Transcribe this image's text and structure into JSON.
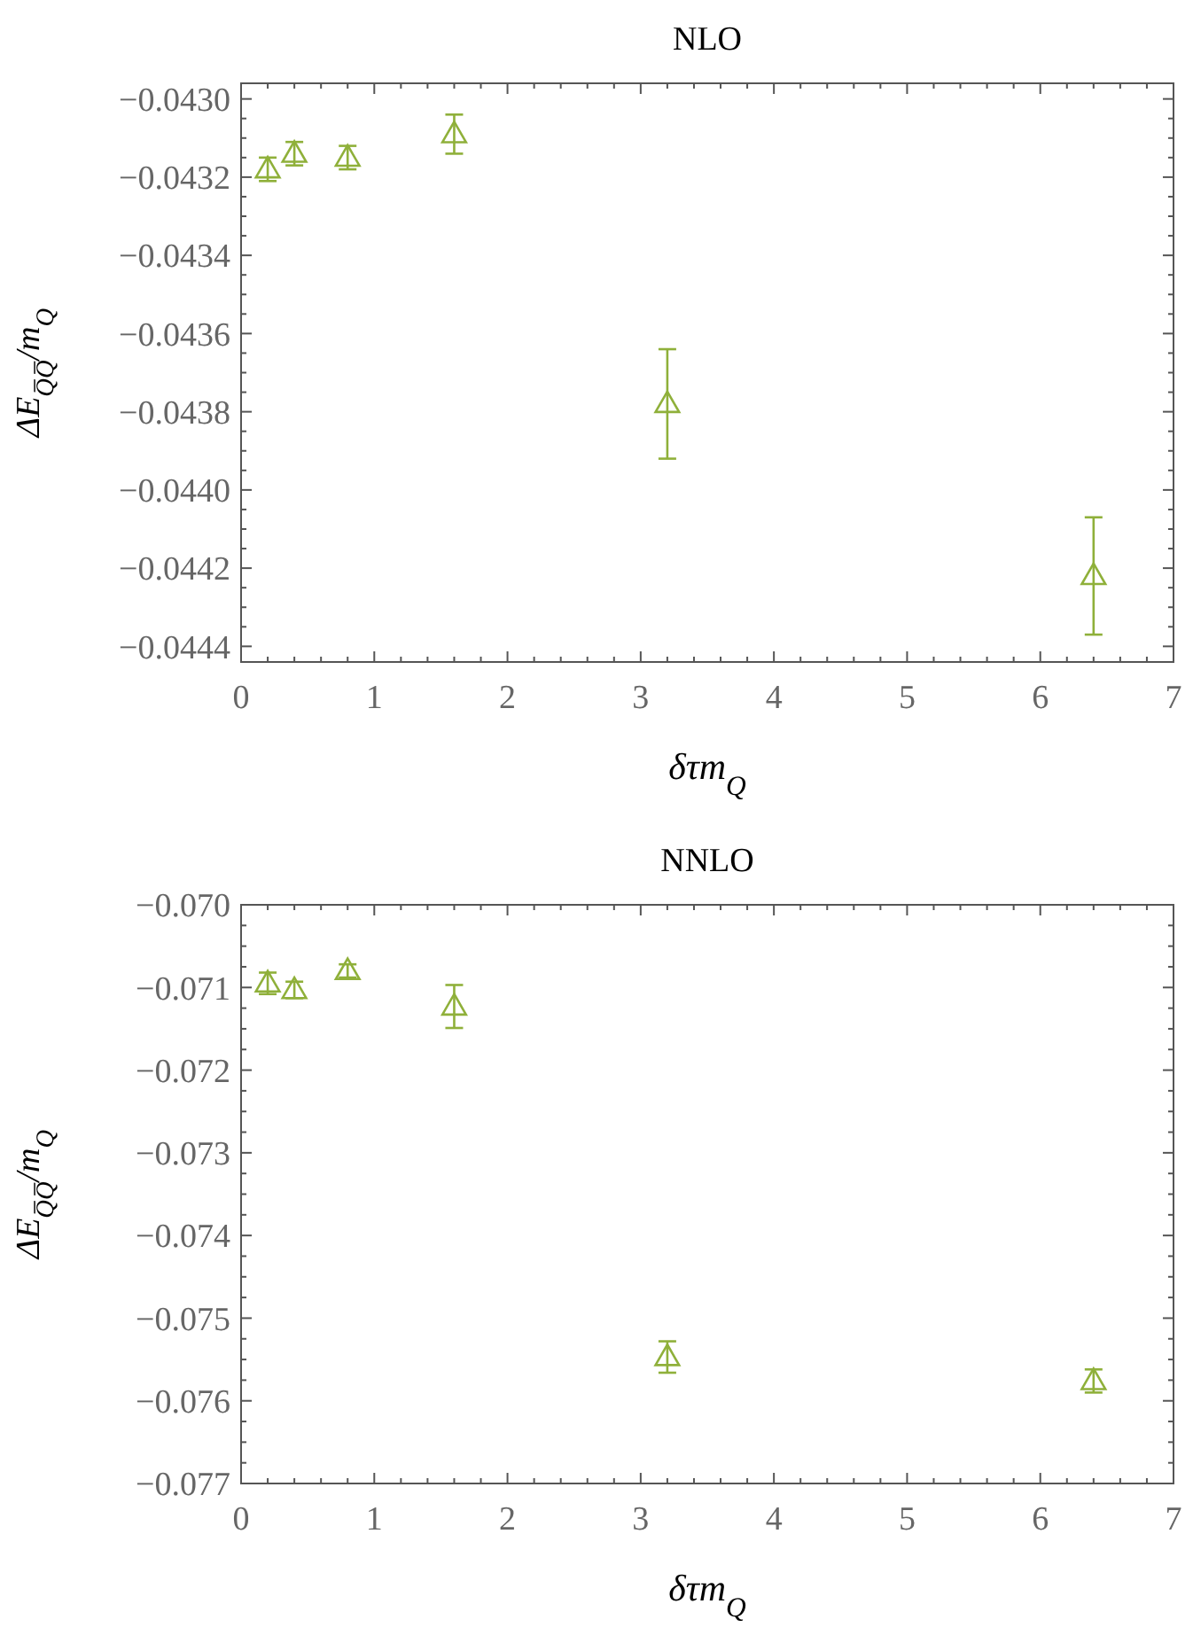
{
  "chart_data": [
    {
      "type": "scatter",
      "title": "NLO",
      "xlabel": "δτm$_{Q}$",
      "ylabel": "ΔE$_{Q̅Q̅}$/m$_{Q}$",
      "marker": "triangle",
      "grid": false,
      "x": [
        0.2,
        0.4,
        0.8,
        1.6,
        3.2,
        6.4
      ],
      "series": [
        {
          "color": "#8fb03a",
          "values": [
            -0.04318,
            -0.04314,
            -0.04315,
            -0.04309,
            -0.04378,
            -0.04422
          ],
          "errors": [
            3e-05,
            3e-05,
            3e-05,
            5e-05,
            0.00014,
            0.00015
          ]
        }
      ],
      "xlim": [
        0,
        7
      ],
      "xticks": [
        0,
        1,
        2,
        3,
        4,
        5,
        6,
        7
      ],
      "ylim": [
        -0.04444,
        -0.04296
      ],
      "yticks": [
        {
          "value": -0.0444,
          "label": "−0.0444"
        },
        {
          "value": -0.0442,
          "label": "−0.0442"
        },
        {
          "value": -0.044,
          "label": "−0.0440"
        },
        {
          "value": -0.0438,
          "label": "−0.0438"
        },
        {
          "value": -0.0436,
          "label": "−0.0436"
        },
        {
          "value": -0.0434,
          "label": "−0.0434"
        },
        {
          "value": -0.0432,
          "label": "−0.0432"
        },
        {
          "value": -0.043,
          "label": "−0.0430"
        }
      ]
    },
    {
      "type": "scatter",
      "title": "NNLO",
      "xlabel": "δτm$_{Q}$",
      "ylabel": "ΔE$_{Q̅Q̅}$/m$_{Q}$",
      "marker": "triangle",
      "grid": false,
      "x": [
        0.2,
        0.4,
        0.8,
        1.6,
        3.2,
        6.4
      ],
      "series": [
        {
          "color": "#8fb03a",
          "values": [
            -0.07095,
            -0.07103,
            -0.0708,
            -0.07123,
            -0.07547,
            -0.07576
          ],
          "errors": [
            0.00013,
            0.0001,
            8e-05,
            0.00026,
            0.00019,
            0.00014
          ]
        }
      ],
      "xlim": [
        0,
        7
      ],
      "xticks": [
        0,
        1,
        2,
        3,
        4,
        5,
        6,
        7
      ],
      "ylim": [
        -0.077,
        -0.07
      ],
      "yticks": [
        {
          "value": -0.077,
          "label": "−0.077"
        },
        {
          "value": -0.076,
          "label": "−0.076"
        },
        {
          "value": -0.075,
          "label": "−0.075"
        },
        {
          "value": -0.074,
          "label": "−0.074"
        },
        {
          "value": -0.073,
          "label": "−0.073"
        },
        {
          "value": -0.072,
          "label": "−0.072"
        },
        {
          "value": -0.071,
          "label": "−0.071"
        },
        {
          "value": -0.07,
          "label": "−0.070"
        }
      ]
    }
  ]
}
